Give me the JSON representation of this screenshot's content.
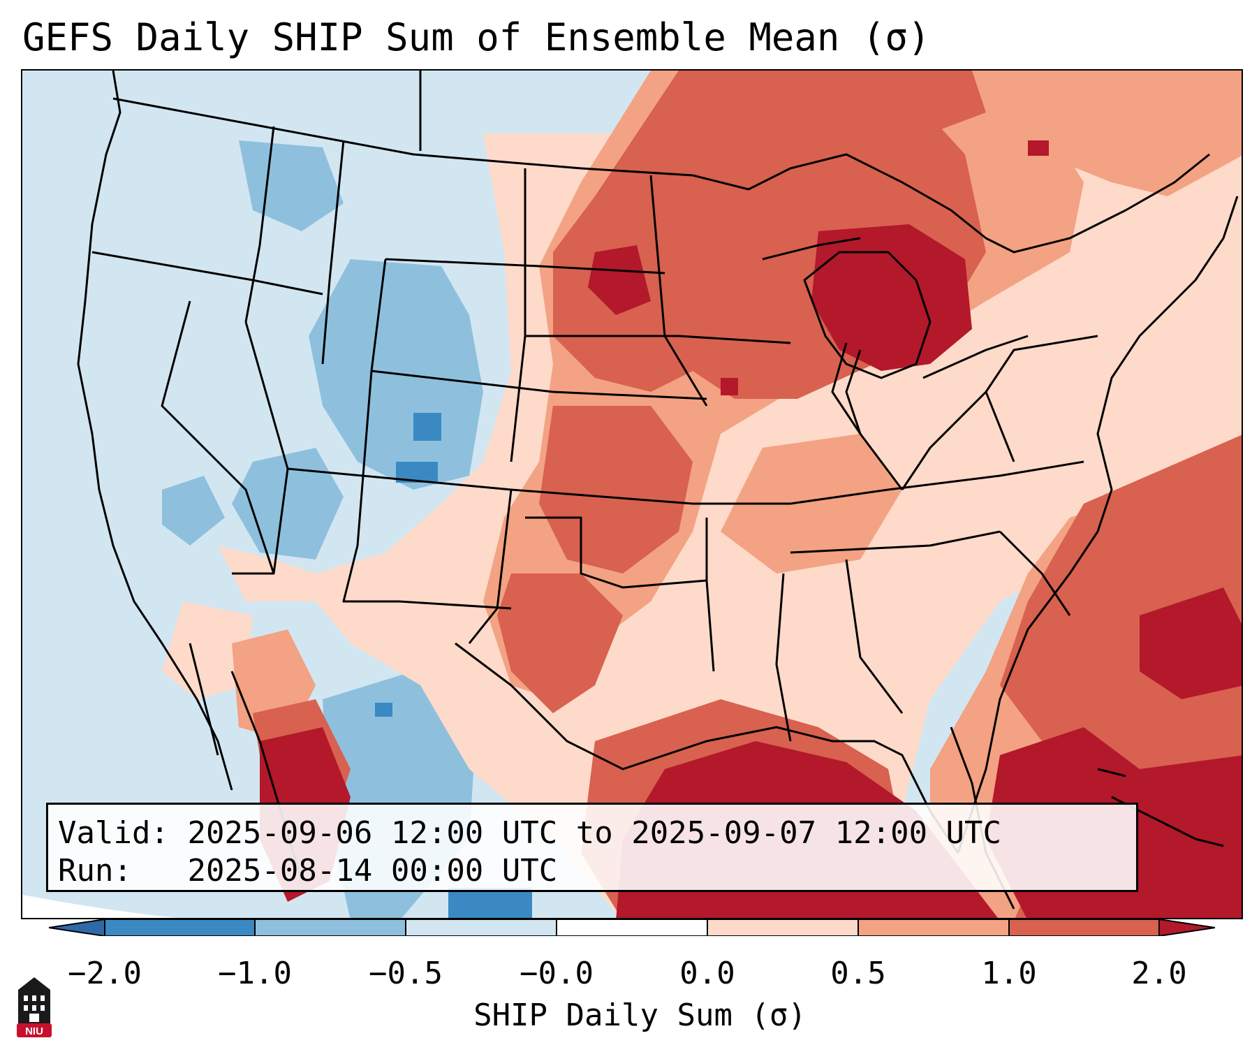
{
  "title": "GEFS Daily SHIP Sum of Ensemble Mean (σ)",
  "info": {
    "valid_label": "Valid:",
    "valid_value": "2025-09-06 12:00 UTC to 2025-09-07 12:00 UTC",
    "run_label": "Run:",
    "run_value": "2025-08-14 00:00 UTC"
  },
  "colorbar": {
    "label": "SHIP Daily Sum (σ)",
    "ticks": [
      "−2.0",
      "−1.0",
      "−0.5",
      "−0.0",
      "0.0",
      "0.5",
      "1.0",
      "2.0"
    ],
    "colors": [
      "#3a89c2",
      "#8ec0de",
      "#d2e6f1",
      "#ffffff",
      "#fddac9",
      "#f3a283",
      "#d8614f",
      "#b3182b"
    ]
  },
  "logo": {
    "text": "NIU"
  }
}
